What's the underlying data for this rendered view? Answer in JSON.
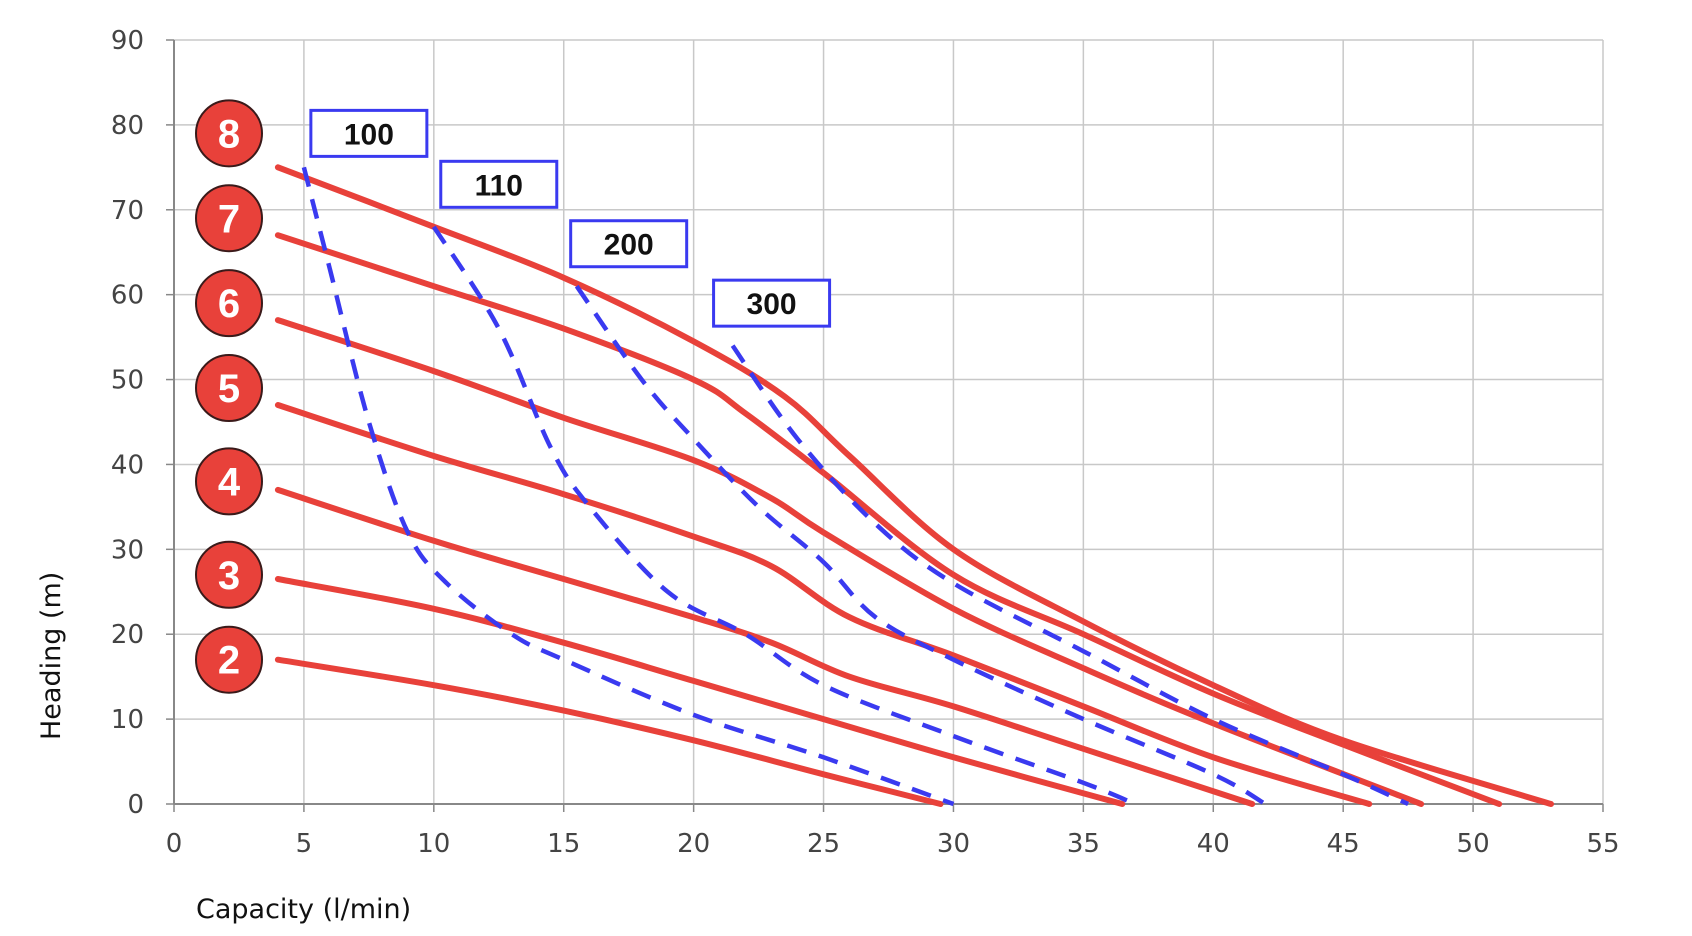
{
  "chart_data": {
    "type": "line",
    "xlabel": "Capacity (l/min)",
    "ylabel": "Heading (m)",
    "xlim": [
      0,
      55
    ],
    "ylim": [
      0,
      90
    ],
    "x_ticks": [
      0,
      5,
      10,
      15,
      20,
      25,
      30,
      35,
      40,
      45,
      50,
      55
    ],
    "y_ticks": [
      0,
      10,
      20,
      30,
      40,
      50,
      60,
      70,
      80,
      90
    ],
    "grid": true,
    "colors": {
      "pump_curve": "#e8413a",
      "efficiency_curve": "#3a3af0",
      "grid": "#c8c8c8",
      "axis": "#888888"
    },
    "series": [
      {
        "name": "2",
        "badge_y": 17,
        "points": [
          [
            4,
            17
          ],
          [
            10,
            14
          ],
          [
            15,
            11
          ],
          [
            20,
            7.5
          ],
          [
            25,
            3.5
          ],
          [
            29.5,
            0
          ]
        ]
      },
      {
        "name": "3",
        "badge_y": 27,
        "points": [
          [
            4,
            26.5
          ],
          [
            10,
            23
          ],
          [
            15,
            19
          ],
          [
            20,
            14.5
          ],
          [
            25,
            10
          ],
          [
            30,
            5.5
          ],
          [
            36.5,
            0
          ]
        ]
      },
      {
        "name": "4",
        "badge_y": 38,
        "points": [
          [
            4,
            37
          ],
          [
            10,
            31
          ],
          [
            15,
            26.5
          ],
          [
            20,
            22
          ],
          [
            23,
            19
          ],
          [
            26,
            15
          ],
          [
            30,
            11.5
          ],
          [
            35,
            6.5
          ],
          [
            41.5,
            0
          ]
        ]
      },
      {
        "name": "5",
        "badge_y": 49,
        "points": [
          [
            4,
            47
          ],
          [
            10,
            41
          ],
          [
            15,
            36.5
          ],
          [
            20,
            31.5
          ],
          [
            23,
            28
          ],
          [
            26,
            22
          ],
          [
            30,
            17.5
          ],
          [
            35,
            11.5
          ],
          [
            40,
            5.5
          ],
          [
            46,
            0
          ]
        ]
      },
      {
        "name": "6",
        "badge_y": 59,
        "points": [
          [
            4,
            57
          ],
          [
            10,
            51
          ],
          [
            15,
            45.5
          ],
          [
            20,
            40.5
          ],
          [
            23,
            36
          ],
          [
            25,
            32
          ],
          [
            30,
            23
          ],
          [
            35,
            16
          ],
          [
            40,
            9.5
          ],
          [
            48,
            0
          ]
        ]
      },
      {
        "name": "7",
        "badge_y": 69,
        "points": [
          [
            4,
            67
          ],
          [
            10,
            61
          ],
          [
            15,
            56
          ],
          [
            20,
            50
          ],
          [
            22,
            46
          ],
          [
            25,
            39
          ],
          [
            30,
            27
          ],
          [
            35,
            20
          ],
          [
            40,
            13
          ],
          [
            45,
            7
          ],
          [
            51,
            0
          ]
        ]
      },
      {
        "name": "8",
        "badge_y": 79,
        "points": [
          [
            4,
            75
          ],
          [
            10,
            68
          ],
          [
            15,
            62
          ],
          [
            20,
            54.5
          ],
          [
            23.5,
            48
          ],
          [
            26,
            41
          ],
          [
            30,
            30
          ],
          [
            35,
            21.5
          ],
          [
            40,
            14
          ],
          [
            45,
            7.5
          ],
          [
            53,
            0
          ]
        ]
      }
    ],
    "efficiency_series": [
      {
        "name": "100",
        "label_x": 7.5,
        "label_y": 79,
        "points": [
          [
            5,
            75
          ],
          [
            6,
            63
          ],
          [
            7.5,
            45
          ],
          [
            9,
            32
          ],
          [
            10.5,
            26
          ],
          [
            13,
            20
          ],
          [
            15,
            17
          ],
          [
            20,
            10.5
          ],
          [
            25,
            5.5
          ],
          [
            30,
            0
          ]
        ]
      },
      {
        "name": "110",
        "label_x": 12.5,
        "label_y": 73,
        "points": [
          [
            10,
            68
          ],
          [
            12.5,
            56
          ],
          [
            14.5,
            42
          ],
          [
            16,
            35
          ],
          [
            19,
            25
          ],
          [
            22,
            20
          ],
          [
            25,
            14
          ],
          [
            30,
            8
          ],
          [
            35,
            2.5
          ],
          [
            37,
            0
          ]
        ]
      },
      {
        "name": "200",
        "label_x": 17.5,
        "label_y": 66,
        "points": [
          [
            15.5,
            61
          ],
          [
            18,
            50
          ],
          [
            20,
            43
          ],
          [
            22.5,
            35
          ],
          [
            25,
            28.5
          ],
          [
            27,
            22
          ],
          [
            30,
            17
          ],
          [
            35,
            10
          ],
          [
            40,
            3.5
          ],
          [
            42,
            0
          ]
        ]
      },
      {
        "name": "300",
        "label_x": 23,
        "label_y": 59,
        "points": [
          [
            21.5,
            54
          ],
          [
            24,
            43
          ],
          [
            27,
            33
          ],
          [
            30,
            26
          ],
          [
            35,
            18
          ],
          [
            40,
            10
          ],
          [
            45,
            3.5
          ],
          [
            47.5,
            0
          ]
        ]
      }
    ]
  }
}
